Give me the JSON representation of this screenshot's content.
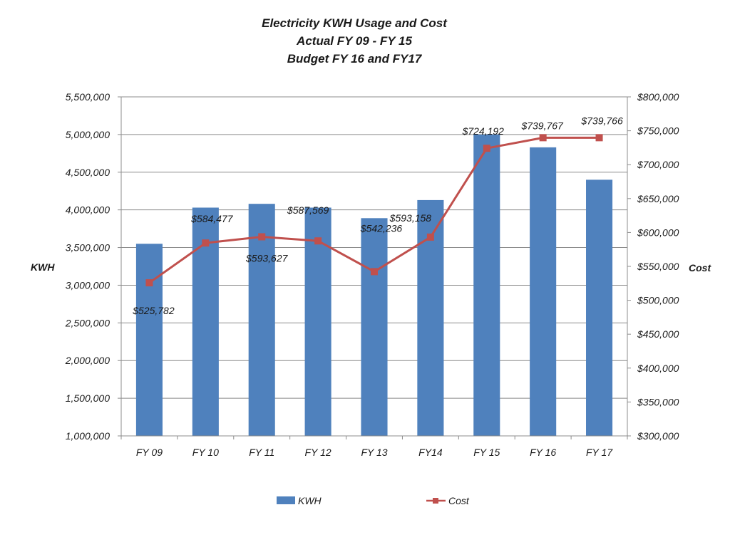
{
  "chart_data": {
    "type": "bar",
    "title": [
      "Electricity KWH  Usage and Cost",
      "Actual FY 09 -  FY 15",
      "Budget FY 16 and  FY17"
    ],
    "categories": [
      "FY 09",
      "FY 10",
      "FY 11",
      "FY 12",
      "FY 13",
      "FY14",
      "FY 15",
      "FY 16",
      "FY 17"
    ],
    "ylabel": "KWH",
    "y2label": "Cost",
    "ylim": [
      1000000,
      5500000
    ],
    "y2lim": [
      300000,
      800000
    ],
    "yticks": [
      "1,000,000",
      "1,500,000",
      "2,000,000",
      "2,500,000",
      "3,000,000",
      "3,500,000",
      "4,000,000",
      "4,500,000",
      "5,000,000",
      "5,500,000"
    ],
    "y2ticks": [
      "$300,000",
      "$350,000",
      "$400,000",
      "$450,000",
      "$500,000",
      "$550,000",
      "$600,000",
      "$650,000",
      "$700,000",
      "$750,000",
      "$800,000"
    ],
    "grid": true,
    "legend": "bottom",
    "series": [
      {
        "name": "KWH",
        "type": "bar",
        "axis": "left",
        "color": "#4f81bd",
        "values": [
          3550000,
          4030000,
          4080000,
          4030000,
          3890000,
          4130000,
          5000000,
          4830000,
          4400000
        ]
      },
      {
        "name": "Cost",
        "type": "line",
        "axis": "right",
        "color": "#c0504d",
        "values": [
          525782,
          584477,
          593627,
          587569,
          542236,
          593158,
          724192,
          739767,
          739766
        ],
        "labels": [
          "$525,782",
          "$584,477",
          "$593,627",
          "$587,569",
          "$542,236",
          "$593,158",
          "$724,192",
          "$739,767",
          "$739,766"
        ]
      }
    ]
  }
}
